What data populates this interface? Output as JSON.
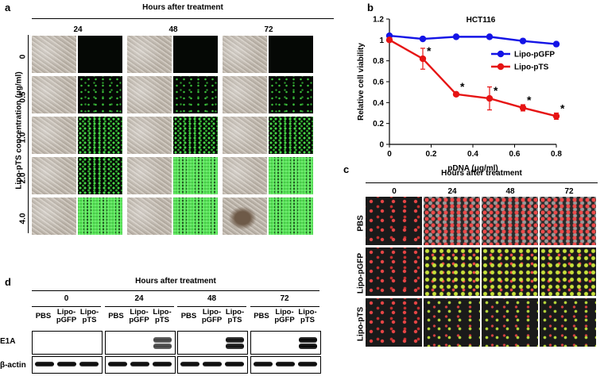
{
  "panel_a": {
    "letter": "a",
    "header": "Hours after treatment",
    "time_points": [
      "24",
      "48",
      "72"
    ],
    "y_axis_label": "Lipo-pTS concentration  (μg/ml)",
    "concentrations": [
      "0",
      "0.5",
      "1.0",
      "2.0",
      "4.0"
    ]
  },
  "panel_b": {
    "letter": "b",
    "chart_data": {
      "type": "line",
      "title": "HCT116",
      "xlabel": "pDNA (μg/ml)",
      "ylabel": "Relative cell viability",
      "x": [
        0,
        0.16,
        0.32,
        0.48,
        0.64,
        0.8
      ],
      "xticks": [
        "0",
        "0.2",
        "0.4",
        "0.6",
        "0.8"
      ],
      "yticks": [
        "0",
        "0.2",
        "0.4",
        "0.6",
        "0.8",
        "1",
        "1.2"
      ],
      "xlim": [
        0,
        0.8
      ],
      "ylim": [
        0,
        1.2
      ],
      "legend_position": "right",
      "series": [
        {
          "name": "Lipo-pGFP",
          "color": "#1414e6",
          "values": [
            1.04,
            1.01,
            1.03,
            1.03,
            0.99,
            0.96
          ]
        },
        {
          "name": "Lipo-pTS",
          "color": "#e61414",
          "values": [
            1.0,
            0.82,
            0.48,
            0.44,
            0.35,
            0.27
          ],
          "errors": [
            0.0,
            0.1,
            0.0,
            0.11,
            0.03,
            0.03
          ],
          "significance": [
            "",
            "*",
            "*",
            "*",
            "*",
            "*"
          ]
        }
      ]
    }
  },
  "panel_c": {
    "letter": "c",
    "header": "Hours after treatment",
    "time_points": [
      "0",
      "24",
      "48",
      "72"
    ],
    "rows": [
      "PBS",
      "Lipo-pGFP",
      "Lipo-pTS"
    ]
  },
  "panel_d": {
    "letter": "d",
    "header": "Hours after treatment",
    "time_points": [
      "0",
      "24",
      "48",
      "72"
    ],
    "lanes": [
      "PBS",
      "Lipo-\npGFP",
      "Lipo-\npTS"
    ],
    "blots": [
      "E1A",
      "β-actin"
    ]
  }
}
